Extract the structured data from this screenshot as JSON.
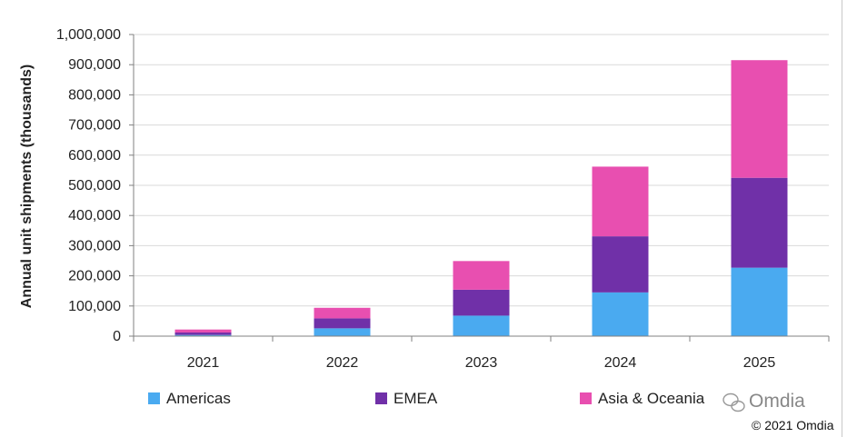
{
  "chart_data": {
    "type": "bar",
    "stacked": true,
    "categories": [
      "2021",
      "2022",
      "2023",
      "2024",
      "2025"
    ],
    "series": [
      {
        "name": "Americas",
        "color": "#4aaaf0",
        "values": [
          4000,
          26000,
          68000,
          145000,
          227000
        ]
      },
      {
        "name": "EMEA",
        "color": "#7030a8",
        "values": [
          8000,
          33000,
          86000,
          186000,
          298000
        ]
      },
      {
        "name": "Asia & Oceania",
        "color": "#e84fb0",
        "values": [
          10000,
          35000,
          95000,
          231000,
          390000
        ]
      }
    ],
    "ylabel": "Annual unit shipments (thousands)",
    "ylim": [
      0,
      1000000
    ],
    "yticks": [
      0,
      100000,
      200000,
      300000,
      400000,
      500000,
      600000,
      700000,
      800000,
      900000,
      1000000
    ],
    "ytick_labels": [
      "0",
      "100,000",
      "200,000",
      "300,000",
      "400,000",
      "500,000",
      "600,000",
      "700,000",
      "800,000",
      "900,000",
      "1,000,000"
    ],
    "grid": true,
    "legend": "bottom"
  },
  "watermark": {
    "text": "Omdia",
    "icon": "wechat-icon"
  },
  "copyright": "© 2021 Omdia"
}
